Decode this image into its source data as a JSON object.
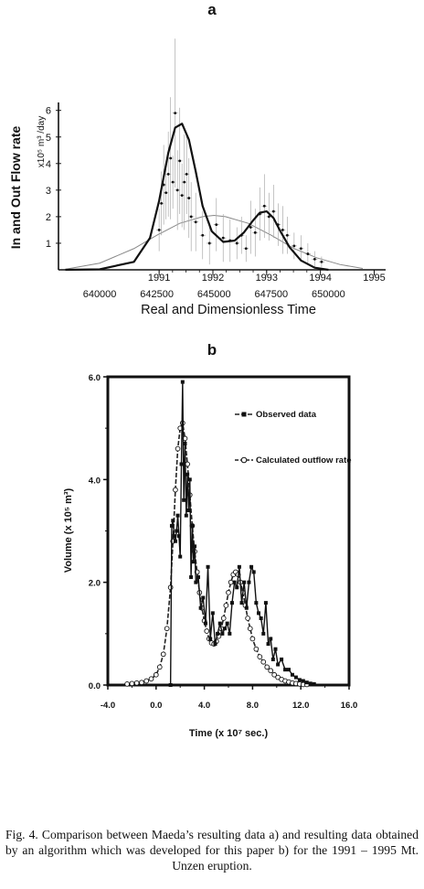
{
  "figure_caption": "Fig. 4. Comparison between Maeda’s resulting data a) and resulting data obtained by an algorithm which was developed for this paper b) for the 1991 – 1995 Mt. Unzen eruption.",
  "chart_data": [
    {
      "panel_label": "a",
      "type": "line",
      "ylabel": "In and Out Flow rate",
      "y_unit_label": "x10⁵ m³ /day",
      "xlabel": "Real and Dimensionless Time",
      "year_ticks": [
        "1991",
        "1992",
        "1993",
        "1994",
        "1995"
      ],
      "x_ticks": [
        "640000",
        "642500",
        "645000",
        "647500",
        "650000"
      ],
      "y_ticks": [
        "1",
        "2",
        "3",
        "4",
        "5",
        "6"
      ],
      "xlim": [
        638200,
        652500
      ],
      "ylim": [
        0,
        6.3
      ],
      "grid": false,
      "series": [
        {
          "style": "thick",
          "x": [
            638500,
            640000,
            641500,
            642200,
            642600,
            643000,
            643300,
            643600,
            643900,
            644200,
            644500,
            644900,
            645400,
            645900,
            646300,
            646700,
            647000,
            647300,
            647600,
            647900,
            648300,
            648800,
            649400,
            650000
          ],
          "y": [
            0.0,
            0.02,
            0.3,
            1.2,
            2.6,
            4.4,
            5.35,
            5.5,
            4.9,
            3.7,
            2.4,
            1.45,
            1.05,
            1.1,
            1.4,
            1.85,
            2.15,
            2.2,
            1.95,
            1.45,
            0.85,
            0.35,
            0.08,
            0.0
          ]
        },
        {
          "style": "thin",
          "x": [
            638500,
            640000,
            641500,
            642500,
            643500,
            644500,
            645000,
            645500,
            646500,
            647500,
            648500,
            649500,
            650500,
            651500
          ],
          "y": [
            0.02,
            0.25,
            0.8,
            1.3,
            1.75,
            2.0,
            2.05,
            2.0,
            1.75,
            1.3,
            0.8,
            0.45,
            0.2,
            0.05
          ]
        },
        {
          "style": "points",
          "x": [
            642600,
            642700,
            642800,
            642900,
            643000,
            643100,
            643200,
            643300,
            643400,
            643500,
            643600,
            643700,
            643800,
            643900,
            644000,
            644200,
            644500,
            644800,
            645100,
            645400,
            645700,
            646000,
            646200,
            646400,
            646600,
            646800,
            647000,
            647200,
            647400,
            647600,
            647800,
            648000,
            648200,
            648500,
            648800,
            649100,
            649400,
            649700
          ],
          "y": [
            1.5,
            2.5,
            3.2,
            2.9,
            3.6,
            4.2,
            3.3,
            5.9,
            3.0,
            4.1,
            2.8,
            3.3,
            3.6,
            2.7,
            2.0,
            1.8,
            1.3,
            1.0,
            1.7,
            1.2,
            1.1,
            1.0,
            1.3,
            0.8,
            1.6,
            1.4,
            2.1,
            2.4,
            2.0,
            2.2,
            1.7,
            1.5,
            1.3,
            0.9,
            0.8,
            0.6,
            0.4,
            0.3
          ],
          "err": [
            0.8,
            1.2,
            1.5,
            1.0,
            1.6,
            2.3,
            1.0,
            2.8,
            1.5,
            2.0,
            1.2,
            1.8,
            1.5,
            1.5,
            1.3,
            1.1,
            0.9,
            0.8,
            1.0,
            0.9,
            0.8,
            0.6,
            0.7,
            0.5,
            1.0,
            0.9,
            1.0,
            1.2,
            0.9,
            1.0,
            0.8,
            0.9,
            0.7,
            0.5,
            0.5,
            0.4,
            0.3,
            0.2
          ]
        }
      ]
    },
    {
      "panel_label": "b",
      "type": "line",
      "xlabel": "Time (x 10⁷ sec.)",
      "ylabel": "Volume (x 10⁵ m³)",
      "x_ticks": [
        "-4.0",
        "0.0",
        "4.0",
        "8.0",
        "12.0",
        "16.0"
      ],
      "y_ticks": [
        "0.0",
        "2.0",
        "4.0",
        "6.0"
      ],
      "xlim": [
        -4,
        16
      ],
      "ylim": [
        0,
        6
      ],
      "grid": false,
      "legend_position": "top-right",
      "series": [
        {
          "name": "Observed data",
          "marker": "filled-square",
          "x": [
            1.2,
            1.3,
            1.4,
            1.5,
            1.6,
            1.7,
            1.8,
            1.9,
            2.0,
            2.1,
            2.2,
            2.3,
            2.4,
            2.5,
            2.6,
            2.7,
            2.8,
            2.9,
            3.0,
            3.1,
            3.2,
            3.3,
            3.5,
            3.7,
            3.9,
            4.1,
            4.3,
            4.5,
            4.7,
            4.9,
            5.1,
            5.3,
            5.5,
            5.7,
            5.9,
            6.1,
            6.3,
            6.5,
            6.7,
            6.9,
            7.1,
            7.3,
            7.5,
            7.7,
            7.9,
            8.1,
            8.3,
            8.5,
            8.7,
            8.9,
            9.1,
            9.3,
            9.5,
            9.7,
            9.9,
            10.1,
            10.4,
            10.7,
            11.0,
            11.3,
            11.6,
            11.9,
            12.2,
            12.5,
            12.8,
            13.1
          ],
          "y": [
            0.0,
            3.1,
            3.2,
            2.9,
            2.8,
            3.0,
            3.3,
            2.9,
            2.5,
            4.3,
            5.9,
            3.6,
            4.7,
            3.3,
            4.1,
            3.4,
            4.0,
            2.1,
            3.1,
            2.4,
            2.7,
            2.0,
            2.1,
            1.5,
            1.7,
            1.2,
            2.3,
            0.9,
            1.4,
            0.8,
            1.0,
            1.2,
            1.0,
            1.1,
            1.2,
            1.0,
            1.6,
            2.0,
            1.9,
            2.3,
            1.6,
            2.0,
            1.5,
            2.0,
            2.3,
            2.2,
            1.6,
            1.4,
            1.3,
            1.0,
            1.6,
            0.8,
            0.9,
            0.5,
            0.7,
            0.4,
            0.5,
            0.3,
            0.3,
            0.2,
            0.15,
            0.1,
            0.08,
            0.05,
            0.03,
            0.02
          ]
        },
        {
          "name": "Calculated outflow rate",
          "marker": "open-circle",
          "x": [
            -2.4,
            -2.0,
            -1.6,
            -1.2,
            -0.8,
            -0.4,
            0.0,
            0.3,
            0.6,
            0.9,
            1.2,
            1.4,
            1.6,
            1.8,
            2.0,
            2.2,
            2.4,
            2.6,
            2.8,
            3.0,
            3.2,
            3.4,
            3.6,
            3.8,
            4.0,
            4.2,
            4.4,
            4.6,
            4.8,
            5.0,
            5.2,
            5.4,
            5.6,
            5.8,
            6.0,
            6.2,
            6.4,
            6.6,
            6.8,
            7.0,
            7.2,
            7.4,
            7.6,
            7.8,
            8.0,
            8.3,
            8.6,
            8.9,
            9.2,
            9.5,
            9.8,
            10.1,
            10.4,
            10.7,
            11.0,
            11.3,
            11.6,
            11.9,
            12.2,
            12.5
          ],
          "y": [
            0.02,
            0.03,
            0.04,
            0.05,
            0.08,
            0.12,
            0.2,
            0.35,
            0.6,
            1.1,
            1.9,
            2.8,
            3.8,
            4.6,
            5.0,
            5.1,
            4.8,
            4.3,
            3.7,
            3.1,
            2.6,
            2.2,
            1.8,
            1.5,
            1.25,
            1.05,
            0.9,
            0.82,
            0.8,
            0.85,
            0.95,
            1.1,
            1.3,
            1.55,
            1.8,
            2.0,
            2.15,
            2.2,
            2.15,
            2.0,
            1.8,
            1.55,
            1.3,
            1.1,
            0.9,
            0.7,
            0.55,
            0.45,
            0.35,
            0.28,
            0.2,
            0.15,
            0.11,
            0.08,
            0.06,
            0.04,
            0.03,
            0.02,
            0.01,
            0.01
          ]
        }
      ]
    }
  ]
}
